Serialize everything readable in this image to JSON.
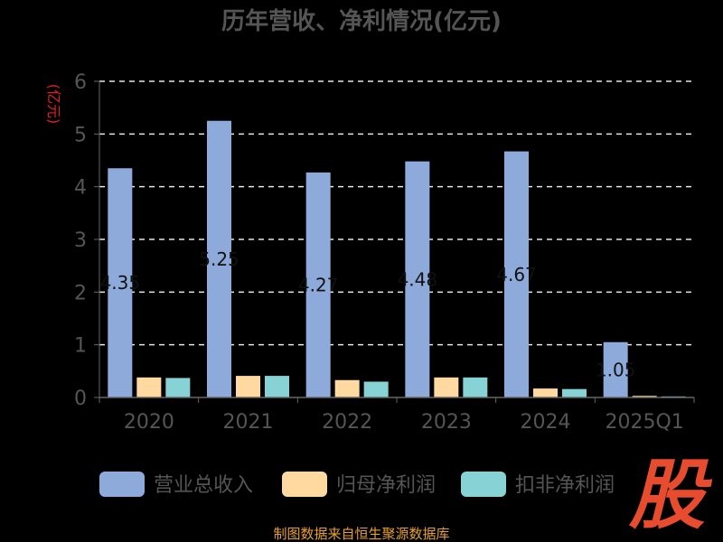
{
  "chart_data": {
    "type": "bar",
    "title": "历年营收、净利情况(亿元)",
    "ylabel": "(亿元)",
    "xlabel": "",
    "categories": [
      "2020",
      "2021",
      "2022",
      "2023",
      "2024",
      "2025Q1"
    ],
    "ylim": [
      0,
      6
    ],
    "yticks": [
      0,
      1,
      2,
      3,
      4,
      5,
      6
    ],
    "grid": true,
    "legend_position": "bottom",
    "series": [
      {
        "name": "营业总收入",
        "color": "#8eaadb",
        "values": [
          4.35,
          5.25,
          4.27,
          4.48,
          4.67,
          1.05
        ]
      },
      {
        "name": "归母净利润",
        "color": "#ffd9a0",
        "values": [
          0.38,
          0.41,
          0.33,
          0.38,
          0.17,
          0.03
        ]
      },
      {
        "name": "扣非净利润",
        "color": "#87d2d4",
        "values": [
          0.37,
          0.41,
          0.3,
          0.38,
          0.16,
          0.02
        ]
      }
    ],
    "data_labels": [
      "4.35",
      "5.25",
      "4.27",
      "4.48",
      "4.67",
      "1.05"
    ]
  },
  "footer": {
    "source": "制图数据来自恒生聚源数据库"
  },
  "logo": {
    "text": "股"
  },
  "colors": {
    "axis": "#666666",
    "grid": "#e6e6e6",
    "text": "#555555",
    "title": "#555555",
    "ylabel": "#e02020",
    "source": "#e8a030",
    "logo": "#e84c2e"
  }
}
